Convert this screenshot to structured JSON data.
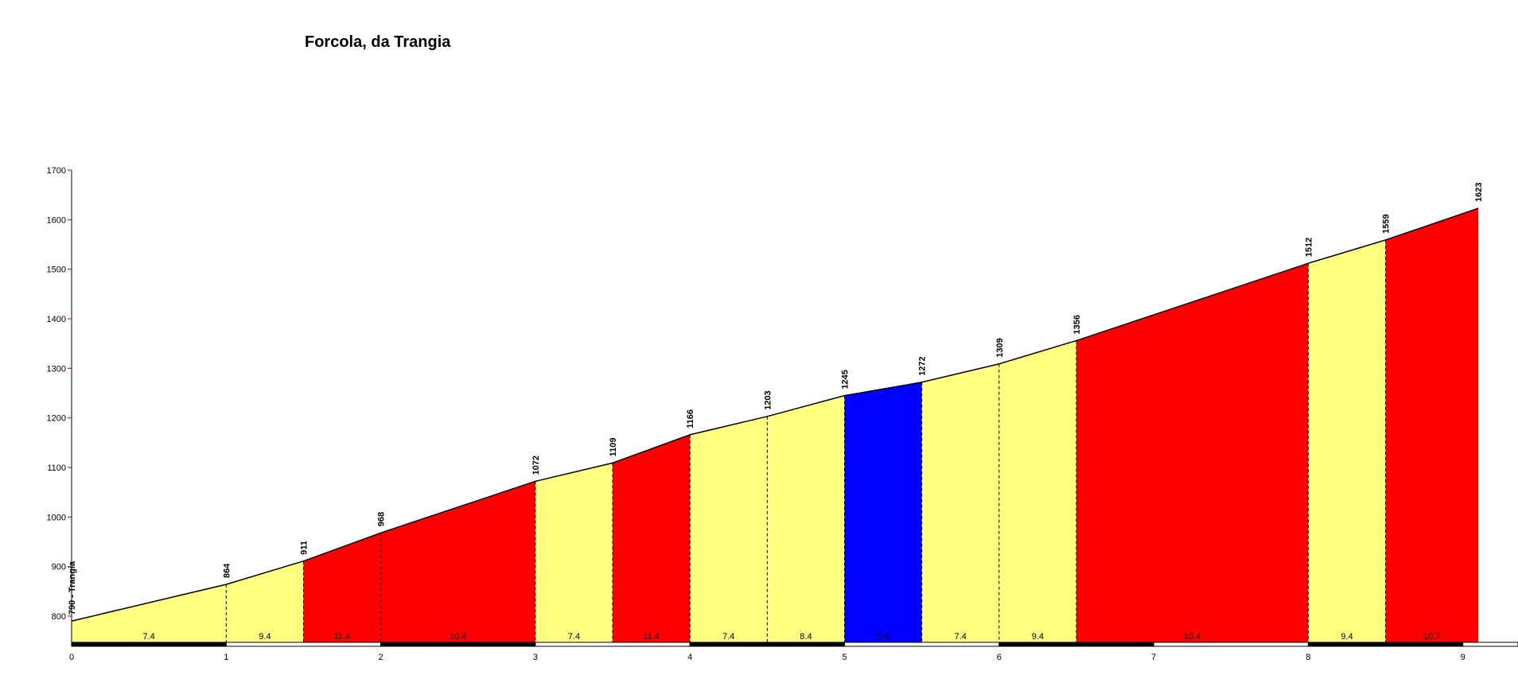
{
  "chart_data": {
    "type": "area",
    "title": "Forcola, da Trangia",
    "xlabel": "",
    "ylabel": "",
    "xlim": [
      0,
      9.1
    ],
    "ylim": [
      747,
      1700
    ],
    "x_ticks": [
      0,
      1,
      2,
      3,
      4,
      5,
      6,
      7,
      8,
      9
    ],
    "y_ticks": [
      800,
      900,
      1000,
      1100,
      1200,
      1300,
      1400,
      1500,
      1600,
      1700
    ],
    "points": [
      {
        "km": 0,
        "elev": 790,
        "label": "790 - Trangia"
      },
      {
        "km": 1,
        "elev": 864,
        "label": "864"
      },
      {
        "km": 1.5,
        "elev": 911,
        "label": "911"
      },
      {
        "km": 2,
        "elev": 968,
        "label": "968"
      },
      {
        "km": 3,
        "elev": 1072,
        "label": "1072"
      },
      {
        "km": 3.5,
        "elev": 1109,
        "label": "1109"
      },
      {
        "km": 4,
        "elev": 1166,
        "label": "1166"
      },
      {
        "km": 4.5,
        "elev": 1203,
        "label": "1203"
      },
      {
        "km": 5,
        "elev": 1245,
        "label": "1245"
      },
      {
        "km": 5.5,
        "elev": 1272,
        "label": "1272"
      },
      {
        "km": 6,
        "elev": 1309,
        "label": "1309"
      },
      {
        "km": 6.5,
        "elev": 1356,
        "label": "1356"
      },
      {
        "km": 8,
        "elev": 1512,
        "label": "1512"
      },
      {
        "km": 8.5,
        "elev": 1559,
        "label": "1559"
      },
      {
        "km": 9.1,
        "elev": 1623,
        "label": "1623"
      }
    ],
    "segments": [
      {
        "grade": "7.4",
        "color": "#FFFF80"
      },
      {
        "grade": "9.4",
        "color": "#FFFF80"
      },
      {
        "grade": "11.4",
        "color": "#FF0000"
      },
      {
        "grade": "10.4",
        "color": "#FF0000"
      },
      {
        "grade": "7.4",
        "color": "#FFFF80"
      },
      {
        "grade": "11.4",
        "color": "#FF0000"
      },
      {
        "grade": "7.4",
        "color": "#FFFF80"
      },
      {
        "grade": "8.4",
        "color": "#FFFF80"
      },
      {
        "grade": "5.4",
        "color": "#0000FF"
      },
      {
        "grade": "7.4",
        "color": "#FFFF80"
      },
      {
        "grade": "9.4",
        "color": "#FFFF80"
      },
      {
        "grade": "10.4",
        "color": "#FF0000"
      },
      {
        "grade": "9.4",
        "color": "#FFFF80"
      },
      {
        "grade": "10.7",
        "color": "#FF0000"
      }
    ],
    "grid": false
  }
}
